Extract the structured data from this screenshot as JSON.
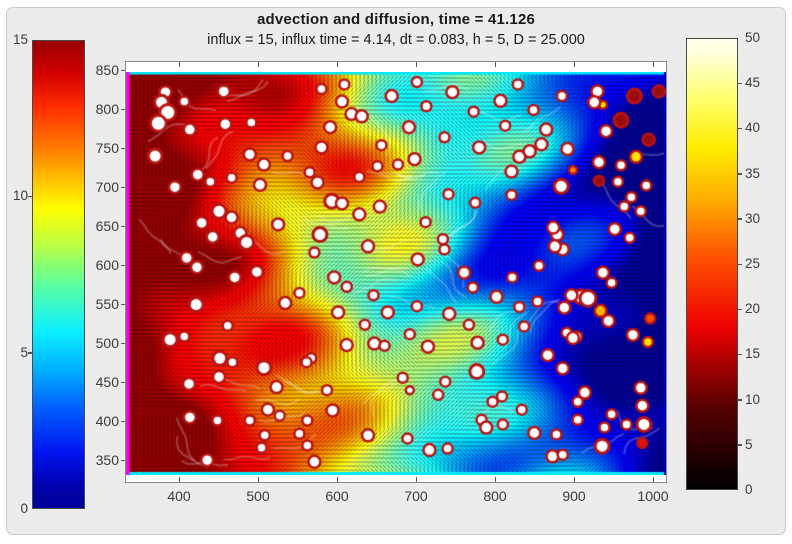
{
  "window": {
    "page_background": "#ffffff",
    "figure_background": "#ececec"
  },
  "chart_data": {
    "type": "heatmap",
    "title": "advection and diffusion, time = 41.126",
    "subtitle": "influx = 15, influx time = 4.14, dt = 0.083, h = 5, D = 25.000",
    "x_ticks": [
      400,
      500,
      600,
      700,
      800,
      900,
      1000
    ],
    "y_ticks": [
      850,
      800,
      750,
      700,
      650,
      600,
      550,
      500,
      450,
      400,
      350
    ],
    "x_range": [
      331,
      1016
    ],
    "y_range": [
      331,
      849
    ],
    "grid": false,
    "field": {
      "description": "advection-diffusion concentration field: saturated dark red (max 15) at left inflow boundary, decaying through orange, yellow, green and cyan to dark blue (0) at right, with turbulent wavy bands, dense black quiver arrows and pale flow streaks",
      "value_range": [
        0,
        15
      ],
      "colormap": "jet",
      "edge_left_color": "#ff00ee",
      "edge_top_color": "#00eaff",
      "edge_bottom_color": "#00eaff",
      "edge_right_color": "#0000bb"
    },
    "colorbars": [
      {
        "side": "left",
        "colormap": "jet",
        "min": 0,
        "max": 15,
        "tick_labels": [
          15,
          10,
          5,
          0
        ]
      },
      {
        "side": "right",
        "colormap": "hot",
        "min": 0,
        "max": 50,
        "tick_labels": [
          50,
          45,
          40,
          35,
          30,
          25,
          20,
          15,
          10,
          5,
          0
        ]
      }
    ],
    "cells": {
      "ring_color": "#b81414",
      "palette": {
        "w": "#ffffff",
        "dr": "#990d0d",
        "r": "#e01414",
        "o": "#ff8400",
        "o2": "#ff4f00",
        "oy": "#ffb300",
        "y": "#ffde00"
      },
      "points": [
        [
          381,
          823,
          6,
          "w"
        ],
        [
          376,
          810,
          7,
          "w"
        ],
        [
          384,
          797,
          8,
          "w"
        ],
        [
          372,
          783,
          8,
          "w"
        ],
        [
          405,
          811,
          5,
          "w"
        ],
        [
          412,
          775,
          6,
          "w"
        ],
        [
          368,
          741,
          7,
          "w"
        ],
        [
          455,
          824,
          6,
          "w"
        ],
        [
          457,
          782,
          6,
          "w"
        ],
        [
          490,
          784,
          5,
          "w"
        ],
        [
          488,
          743,
          6,
          "w"
        ],
        [
          506,
          730,
          6,
          "w"
        ],
        [
          536,
          741,
          5,
          "w"
        ],
        [
          422,
          717,
          6,
          "w"
        ],
        [
          438,
          708,
          5,
          "w"
        ],
        [
          393,
          701,
          6,
          "w"
        ],
        [
          465,
          713,
          5,
          "w"
        ],
        [
          501,
          704,
          6,
          "w"
        ],
        [
          449,
          670,
          7,
          "w"
        ],
        [
          465,
          662,
          6,
          "w"
        ],
        [
          427,
          655,
          6,
          "w"
        ],
        [
          441,
          637,
          6,
          "w"
        ],
        [
          476,
          642,
          6,
          "w"
        ],
        [
          484,
          630,
          7,
          "w"
        ],
        [
          408,
          610,
          6,
          "w"
        ],
        [
          421,
          598,
          6,
          "w"
        ],
        [
          524,
          653,
          6,
          "w"
        ],
        [
          579,
          827,
          5,
          "w"
        ],
        [
          605,
          811,
          6,
          "w"
        ],
        [
          617,
          795,
          6,
          "w"
        ],
        [
          630,
          792,
          6,
          "w"
        ],
        [
          590,
          778,
          6,
          "w"
        ],
        [
          579,
          752,
          6,
          "w"
        ],
        [
          574,
          707,
          6,
          "w"
        ],
        [
          564,
          720,
          5,
          "w"
        ],
        [
          592,
          683,
          7,
          "w"
        ],
        [
          605,
          680,
          6,
          "w"
        ],
        [
          650,
          728,
          5,
          "w"
        ],
        [
          627,
          666,
          6,
          "w"
        ],
        [
          577,
          640,
          7,
          "w"
        ],
        [
          570,
          617,
          5,
          "w"
        ],
        [
          638,
          625,
          6,
          "w"
        ],
        [
          697,
          737,
          6,
          "w"
        ],
        [
          676,
          730,
          5,
          "w"
        ],
        [
          653,
          676,
          6,
          "w"
        ],
        [
          740,
          692,
          5,
          "w"
        ],
        [
          774,
          681,
          5,
          "w"
        ],
        [
          711,
          656,
          5,
          "w"
        ],
        [
          701,
          608,
          6,
          "w"
        ],
        [
          733,
          634,
          5,
          "w"
        ],
        [
          735,
          621,
          5,
          "w"
        ],
        [
          760,
          591,
          6,
          "w"
        ],
        [
          771,
          572,
          5,
          "w"
        ],
        [
          801,
          560,
          6,
          "w"
        ],
        [
          830,
          547,
          5,
          "w"
        ],
        [
          853,
          554,
          5,
          "w"
        ],
        [
          830,
          740,
          6,
          "w"
        ],
        [
          820,
          721,
          6,
          "w"
        ],
        [
          820,
          691,
          5,
          "w"
        ],
        [
          843,
          747,
          6,
          "w"
        ],
        [
          883,
          702,
          7,
          "w"
        ],
        [
          931,
          733,
          6,
          "w"
        ],
        [
          955,
          708,
          5,
          "w"
        ],
        [
          963,
          676,
          5,
          "w"
        ],
        [
          972,
          688,
          5,
          "w"
        ],
        [
          951,
          647,
          6,
          "w"
        ],
        [
          970,
          636,
          5,
          "w"
        ],
        [
          936,
          591,
          6,
          "w"
        ],
        [
          947,
          578,
          5,
          "w"
        ],
        [
          878,
          640,
          6,
          "w"
        ],
        [
          885,
          621,
          6,
          "w"
        ],
        [
          908,
          560,
          7,
          "w"
        ],
        [
          898,
          723,
          4,
          "o"
        ],
        [
          978,
          740,
          6,
          "y"
        ],
        [
          931,
          709,
          5,
          "dr"
        ],
        [
          611,
          498,
          6,
          "w"
        ],
        [
          646,
          500,
          6,
          "w"
        ],
        [
          659,
          497,
          5,
          "w"
        ],
        [
          691,
          512,
          5,
          "w"
        ],
        [
          714,
          496,
          6,
          "w"
        ],
        [
          777,
          501,
          6,
          "w"
        ],
        [
          809,
          505,
          5,
          "w"
        ],
        [
          866,
          485,
          6,
          "w"
        ],
        [
          890,
          514,
          5,
          "w"
        ],
        [
          903,
          509,
          5,
          "w"
        ],
        [
          974,
          511,
          6,
          "w"
        ],
        [
          776,
          464,
          7,
          "w"
        ],
        [
          736,
          451,
          5,
          "w"
        ],
        [
          727,
          434,
          5,
          "w"
        ],
        [
          682,
          456,
          5,
          "w"
        ],
        [
          808,
          432,
          5,
          "w"
        ],
        [
          796,
          425,
          5,
          "w"
        ],
        [
          782,
          402,
          5,
          "w"
        ],
        [
          788,
          392,
          6,
          "w"
        ],
        [
          809,
          396,
          5,
          "w"
        ],
        [
          833,
          415,
          5,
          "w"
        ],
        [
          849,
          385,
          6,
          "w"
        ],
        [
          877,
          383,
          5,
          "w"
        ],
        [
          904,
          425,
          5,
          "w"
        ],
        [
          913,
          434,
          4,
          "w"
        ],
        [
          904,
          402,
          5,
          "w"
        ],
        [
          938,
          392,
          5,
          "w"
        ],
        [
          947,
          409,
          5,
          "w"
        ],
        [
          966,
          396,
          5,
          "w"
        ],
        [
          935,
          368,
          7,
          "w"
        ],
        [
          872,
          355,
          6,
          "w"
        ],
        [
          885,
          357,
          5,
          "w"
        ],
        [
          688,
          378,
          5,
          "w"
        ],
        [
          716,
          363,
          6,
          "w"
        ],
        [
          739,
          365,
          5,
          "w"
        ],
        [
          638,
          382,
          6,
          "w"
        ],
        [
          691,
          440,
          4,
          "w"
        ],
        [
          984,
          443,
          6,
          "w"
        ],
        [
          986,
          420,
          6,
          "w"
        ],
        [
          988,
          396,
          7,
          "w"
        ],
        [
          986,
          372,
          5,
          "r"
        ],
        [
          469,
          585,
          6,
          "w"
        ],
        [
          497,
          592,
          6,
          "w"
        ],
        [
          420,
          550,
          7,
          "w"
        ],
        [
          533,
          552,
          6,
          "w"
        ],
        [
          551,
          565,
          5,
          "w"
        ],
        [
          595,
          585,
          6,
          "w"
        ],
        [
          611,
          573,
          5,
          "w"
        ],
        [
          387,
          505,
          7,
          "w"
        ],
        [
          405,
          509,
          5,
          "w"
        ],
        [
          460,
          523,
          5,
          "w"
        ],
        [
          450,
          481,
          7,
          "w"
        ],
        [
          466,
          476,
          5,
          "w"
        ],
        [
          449,
          457,
          6,
          "w"
        ],
        [
          411,
          448,
          6,
          "w"
        ],
        [
          506,
          469,
          7,
          "w"
        ],
        [
          522,
          444,
          6,
          "w"
        ],
        [
          566,
          481,
          5,
          "w"
        ],
        [
          560,
          476,
          5,
          "w"
        ],
        [
          511,
          415,
          6,
          "w"
        ],
        [
          526,
          407,
          5,
          "w"
        ],
        [
          412,
          405,
          6,
          "w"
        ],
        [
          447,
          401,
          5,
          "w"
        ],
        [
          488,
          401,
          5,
          "w"
        ],
        [
          561,
          401,
          5,
          "w"
        ],
        [
          507,
          382,
          5,
          "w"
        ],
        [
          551,
          384,
          5,
          "w"
        ],
        [
          586,
          440,
          5,
          "w"
        ],
        [
          593,
          414,
          6,
          "w"
        ],
        [
          561,
          369,
          5,
          "w"
        ],
        [
          503,
          366,
          5,
          "w"
        ],
        [
          434,
          350,
          6,
          "w"
        ],
        [
          570,
          348,
          6,
          "w"
        ],
        [
          917,
          558,
          8,
          "w"
        ],
        [
          896,
          562,
          6,
          "w"
        ],
        [
          887,
          546,
          6,
          "w"
        ],
        [
          943,
          529,
          6,
          "w"
        ],
        [
          898,
          507,
          6,
          "w"
        ],
        [
          885,
          468,
          6,
          "w"
        ],
        [
          913,
          437,
          6,
          "w"
        ],
        [
          933,
          542,
          6,
          "oy"
        ],
        [
          996,
          532,
          5,
          "o2"
        ],
        [
          993,
          502,
          5,
          "y"
        ],
        [
          976,
          818,
          7,
          "dr"
        ],
        [
          959,
          787,
          7,
          "dr"
        ],
        [
          994,
          762,
          6,
          "dr"
        ],
        [
          936,
          807,
          4,
          "y"
        ],
        [
          929,
          824,
          6,
          "w"
        ],
        [
          925,
          810,
          6,
          "w"
        ],
        [
          1007,
          824,
          6,
          "dr"
        ],
        [
          940,
          773,
          6,
          "w"
        ],
        [
          864,
          775,
          6,
          "w"
        ],
        [
          858,
          756,
          6,
          "w"
        ],
        [
          891,
          750,
          6,
          "w"
        ],
        [
          959,
          729,
          5,
          "w"
        ],
        [
          991,
          703,
          5,
          "w"
        ],
        [
          984,
          670,
          5,
          "w"
        ],
        [
          873,
          649,
          6,
          "w"
        ],
        [
          875,
          625,
          6,
          "w"
        ],
        [
          627,
          714,
          5,
          "w"
        ],
        [
          668,
          818,
          6,
          "w"
        ],
        [
          712,
          805,
          5,
          "w"
        ],
        [
          745,
          823,
          6,
          "w"
        ],
        [
          772,
          798,
          5,
          "w"
        ],
        [
          806,
          812,
          6,
          "w"
        ],
        [
          848,
          800,
          5,
          "w"
        ],
        [
          690,
          778,
          6,
          "w"
        ],
        [
          735,
          765,
          5,
          "w"
        ],
        [
          779,
          752,
          6,
          "w"
        ],
        [
          812,
          780,
          5,
          "w"
        ],
        [
          655,
          755,
          5,
          "w"
        ],
        [
          608,
          833,
          5,
          "w"
        ],
        [
          700,
          836,
          5,
          "w"
        ],
        [
          828,
          833,
          5,
          "w"
        ],
        [
          884,
          818,
          5,
          "w"
        ],
        [
          645,
          562,
          5,
          "w"
        ],
        [
          663,
          540,
          6,
          "w"
        ],
        [
          700,
          548,
          5,
          "w"
        ],
        [
          741,
          538,
          6,
          "w"
        ],
        [
          766,
          524,
          5,
          "w"
        ],
        [
          634,
          524,
          5,
          "w"
        ],
        [
          600,
          540,
          6,
          "w"
        ],
        [
          836,
          522,
          5,
          "w"
        ],
        [
          855,
          600,
          5,
          "w"
        ],
        [
          821,
          585,
          5,
          "w"
        ]
      ]
    }
  }
}
